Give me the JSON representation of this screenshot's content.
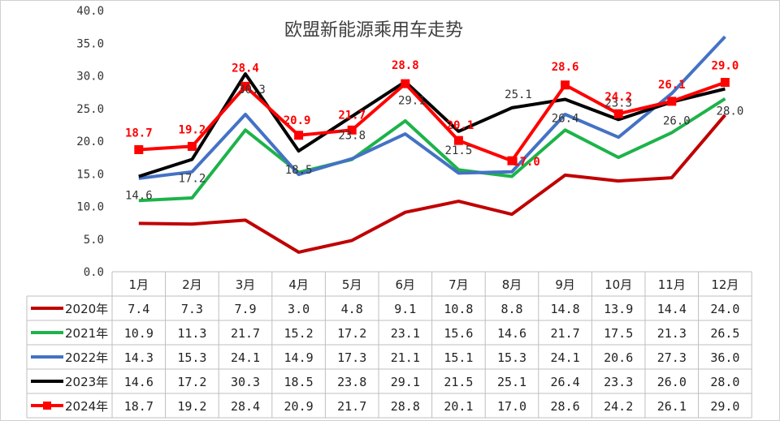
{
  "chart_data": {
    "type": "line",
    "title": "欧盟新能源乘用车走势",
    "categories": [
      "1月",
      "2月",
      "3月",
      "4月",
      "5月",
      "6月",
      "7月",
      "8月",
      "9月",
      "10月",
      "11月",
      "12月"
    ],
    "ylim": [
      0,
      40
    ],
    "yticks": [
      "0.0",
      "5.0",
      "10.0",
      "15.0",
      "20.0",
      "25.0",
      "30.0",
      "35.0",
      "40.0"
    ],
    "series": [
      {
        "name": "2020年",
        "color": "#c00000",
        "values": [
          7.4,
          7.3,
          7.9,
          3.0,
          4.8,
          9.1,
          10.8,
          8.8,
          14.8,
          13.9,
          14.4,
          24.0
        ],
        "labels": [
          "7.4",
          "7.3",
          "7.9",
          "3.0",
          "4.8",
          "9.1",
          "10.8",
          "8.8",
          "14.8",
          "13.9",
          "14.4",
          "24.0"
        ]
      },
      {
        "name": "2021年",
        "color": "#1db34a",
        "values": [
          10.9,
          11.3,
          21.7,
          15.2,
          17.2,
          23.1,
          15.6,
          14.6,
          21.7,
          17.5,
          21.3,
          26.5
        ],
        "labels": [
          "10.9",
          "11.3",
          "21.7",
          "15.2",
          "17.2",
          "23.1",
          "15.6",
          "14.6",
          "21.7",
          "17.5",
          "21.3",
          "26.5"
        ]
      },
      {
        "name": "2022年",
        "color": "#4472c4",
        "values": [
          14.3,
          15.3,
          24.1,
          14.9,
          17.3,
          21.1,
          15.1,
          15.3,
          24.1,
          20.6,
          27.3,
          36.0
        ],
        "labels": [
          "14.3",
          "15.3",
          "24.1",
          "14.9",
          "17.3",
          "21.1",
          "15.1",
          "15.3",
          "24.1",
          "20.6",
          "27.3",
          "36.0"
        ]
      },
      {
        "name": "2023年",
        "color": "#000000",
        "values": [
          14.6,
          17.2,
          30.3,
          18.5,
          23.8,
          29.1,
          21.5,
          25.1,
          26.4,
          23.3,
          26.0,
          28.0
        ],
        "labels": [
          "14.6",
          "17.2",
          "30.3",
          "18.5",
          "23.8",
          "29.1",
          "21.5",
          "25.1",
          "26.4",
          "23.3",
          "26.0",
          "28.0"
        ]
      },
      {
        "name": "2024年",
        "color": "#ff0000",
        "values": [
          18.7,
          19.2,
          28.4,
          20.9,
          21.7,
          28.8,
          20.1,
          17.0,
          28.6,
          24.2,
          26.1,
          29.0
        ],
        "labels": [
          "18.7",
          "19.2",
          "28.4",
          "20.9",
          "21.7",
          "28.8",
          "20.1",
          "17.0",
          "28.6",
          "24.2",
          "26.1",
          "29.0"
        ]
      }
    ],
    "data_labels": {
      "2023年": [
        "14.6",
        "17.2",
        "30.3",
        "18.5",
        "23.8",
        "29.1",
        "21.5",
        "25.1",
        "26.4",
        "23.3",
        "26.0",
        "28.0"
      ],
      "2024年": [
        "18.7",
        "19.2",
        "28.4",
        "20.9",
        "21.7",
        "28.8",
        "20.1",
        "17.0",
        "28.6",
        "24.2",
        "26.1",
        "29.0"
      ]
    }
  }
}
